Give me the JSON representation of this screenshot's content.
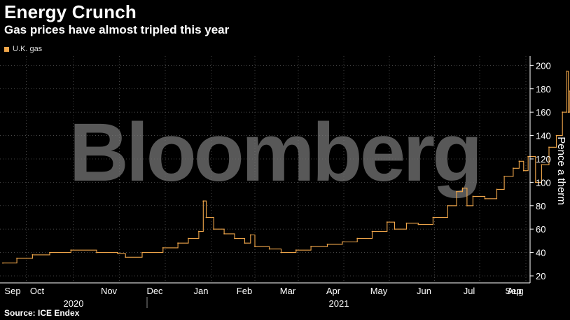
{
  "title": "Energy Crunch",
  "subtitle": "Gas prices have almost tripled this year",
  "source": "Source: ICE Endex",
  "watermark": "Bloomberg",
  "colors": {
    "series": "#f0a64a",
    "background": "#000000",
    "grid": "#555555"
  },
  "chart_data": {
    "type": "line",
    "ylabel": "Pence a therm",
    "ylim": [
      14,
      208
    ],
    "yticks": [
      20,
      40,
      60,
      80,
      100,
      120,
      140,
      160,
      180,
      200
    ],
    "y_axis_position": "right",
    "grid": true,
    "legend_placement": "top-left",
    "x_tick_labels": [
      "Sep",
      "Oct",
      "Nov",
      "Dec",
      "Jan",
      "Feb",
      "Mar",
      "Apr",
      "May",
      "Jun",
      "Jul",
      "Aug",
      "Sep"
    ],
    "year_labels": [
      "2020",
      "2021"
    ],
    "series": [
      {
        "name": "U.K. gas",
        "points": [
          [
            "2020-09-01",
            31
          ],
          [
            "2020-09-10",
            35
          ],
          [
            "2020-09-20",
            38
          ],
          [
            "2020-10-01",
            40
          ],
          [
            "2020-10-15",
            42
          ],
          [
            "2020-11-01",
            40
          ],
          [
            "2020-11-15",
            39
          ],
          [
            "2020-11-20",
            36
          ],
          [
            "2020-12-01",
            40
          ],
          [
            "2020-12-15",
            44
          ],
          [
            "2020-12-25",
            48
          ],
          [
            "2021-01-01",
            52
          ],
          [
            "2021-01-08",
            58
          ],
          [
            "2021-01-11",
            84
          ],
          [
            "2021-01-13",
            70
          ],
          [
            "2021-01-18",
            60
          ],
          [
            "2021-01-25",
            56
          ],
          [
            "2021-02-01",
            52
          ],
          [
            "2021-02-08",
            48
          ],
          [
            "2021-02-12",
            55
          ],
          [
            "2021-02-15",
            45
          ],
          [
            "2021-02-25",
            43
          ],
          [
            "2021-03-05",
            40
          ],
          [
            "2021-03-15",
            42
          ],
          [
            "2021-03-25",
            45
          ],
          [
            "2021-04-05",
            47
          ],
          [
            "2021-04-15",
            49
          ],
          [
            "2021-04-25",
            52
          ],
          [
            "2021-05-05",
            58
          ],
          [
            "2021-05-15",
            66
          ],
          [
            "2021-05-20",
            60
          ],
          [
            "2021-05-28",
            65
          ],
          [
            "2021-06-05",
            64
          ],
          [
            "2021-06-15",
            70
          ],
          [
            "2021-06-25",
            80
          ],
          [
            "2021-07-01",
            92
          ],
          [
            "2021-07-05",
            95
          ],
          [
            "2021-07-08",
            80
          ],
          [
            "2021-07-12",
            88
          ],
          [
            "2021-07-20",
            86
          ],
          [
            "2021-07-28",
            94
          ],
          [
            "2021-08-02",
            105
          ],
          [
            "2021-08-08",
            112
          ],
          [
            "2021-08-12",
            118
          ],
          [
            "2021-08-15",
            110
          ],
          [
            "2021-08-18",
            122
          ],
          [
            "2021-08-23",
            100
          ],
          [
            "2021-08-27",
            115
          ],
          [
            "2021-09-01",
            130
          ],
          [
            "2021-09-06",
            140
          ],
          [
            "2021-09-10",
            160
          ],
          [
            "2021-09-13",
            195
          ],
          [
            "2021-09-14",
            160
          ],
          [
            "2021-09-15",
            178
          ],
          [
            "2021-09-16",
            165
          ],
          [
            "2021-09-17",
            165
          ]
        ]
      }
    ]
  }
}
